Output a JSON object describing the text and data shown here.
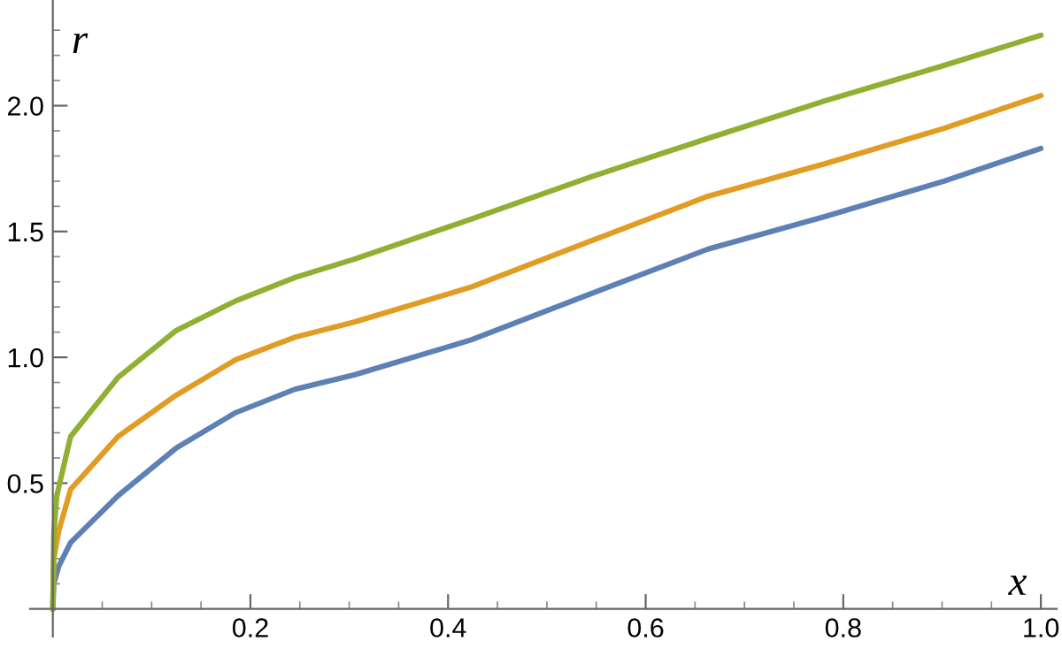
{
  "chart_data": {
    "type": "line",
    "xlabel": "x",
    "ylabel": "r",
    "xlim": [
      -0.023,
      1.016
    ],
    "ylim": [
      -0.11,
      2.42
    ],
    "xticks": [
      {
        "value": 0.05,
        "label": null
      },
      {
        "value": 0.1,
        "label": null
      },
      {
        "value": 0.15,
        "label": null
      },
      {
        "value": 0.2,
        "label": "0.2"
      },
      {
        "value": 0.25,
        "label": null
      },
      {
        "value": 0.3,
        "label": null
      },
      {
        "value": 0.35,
        "label": null
      },
      {
        "value": 0.4,
        "label": "0.4"
      },
      {
        "value": 0.45,
        "label": null
      },
      {
        "value": 0.5,
        "label": null
      },
      {
        "value": 0.55,
        "label": null
      },
      {
        "value": 0.6,
        "label": "0.6"
      },
      {
        "value": 0.65,
        "label": null
      },
      {
        "value": 0.7,
        "label": null
      },
      {
        "value": 0.75,
        "label": null
      },
      {
        "value": 0.8,
        "label": "0.8"
      },
      {
        "value": 0.85,
        "label": null
      },
      {
        "value": 0.9,
        "label": null
      },
      {
        "value": 0.95,
        "label": null
      },
      {
        "value": 1.0,
        "label": "1.0"
      }
    ],
    "yticks": [
      {
        "value": 0.1,
        "label": null
      },
      {
        "value": 0.2,
        "label": null
      },
      {
        "value": 0.3,
        "label": null
      },
      {
        "value": 0.4,
        "label": null
      },
      {
        "value": 0.5,
        "label": "0.5"
      },
      {
        "value": 0.6,
        "label": null
      },
      {
        "value": 0.7,
        "label": null
      },
      {
        "value": 0.8,
        "label": null
      },
      {
        "value": 0.9,
        "label": null
      },
      {
        "value": 1.0,
        "label": "1.0"
      },
      {
        "value": 1.1,
        "label": null
      },
      {
        "value": 1.2,
        "label": null
      },
      {
        "value": 1.3,
        "label": null
      },
      {
        "value": 1.4,
        "label": null
      },
      {
        "value": 1.5,
        "label": "1.5"
      },
      {
        "value": 1.6,
        "label": null
      },
      {
        "value": 1.7,
        "label": null
      },
      {
        "value": 1.8,
        "label": null
      },
      {
        "value": 1.9,
        "label": null
      },
      {
        "value": 2.0,
        "label": "2.0"
      },
      {
        "value": 2.1,
        "label": null
      },
      {
        "value": 2.2,
        "label": null
      },
      {
        "value": 2.3,
        "label": null
      }
    ],
    "grid": false,
    "legend": false,
    "series": [
      {
        "color": "#5e81b5",
        "x": [
          0,
          0.001,
          0.006,
          0.018,
          0.066,
          0.125,
          0.185,
          0.245,
          0.305,
          0.424,
          0.543,
          0.663,
          0.782,
          0.902,
          1.0
        ],
        "values": [
          0,
          0.1,
          0.17,
          0.264,
          0.45,
          0.64,
          0.78,
          0.873,
          0.93,
          1.07,
          1.25,
          1.43,
          1.56,
          1.7,
          1.83
        ]
      },
      {
        "color": "#e19c24",
        "x": [
          0,
          0.001,
          0.006,
          0.018,
          0.066,
          0.125,
          0.185,
          0.245,
          0.305,
          0.424,
          0.543,
          0.663,
          0.782,
          0.902,
          1.0
        ],
        "values": [
          0,
          0.2,
          0.31,
          0.475,
          0.685,
          0.85,
          0.99,
          1.08,
          1.14,
          1.28,
          1.46,
          1.64,
          1.77,
          1.91,
          2.04
        ]
      },
      {
        "color": "#8fb032",
        "x": [
          0,
          0.001,
          0.004,
          0.018,
          0.066,
          0.125,
          0.185,
          0.245,
          0.305,
          0.424,
          0.543,
          0.663,
          0.782,
          0.902,
          1.0
        ],
        "values": [
          0,
          0.3,
          0.45,
          0.685,
          0.92,
          1.107,
          1.224,
          1.317,
          1.39,
          1.55,
          1.715,
          1.87,
          2.02,
          2.16,
          2.28
        ]
      }
    ]
  }
}
